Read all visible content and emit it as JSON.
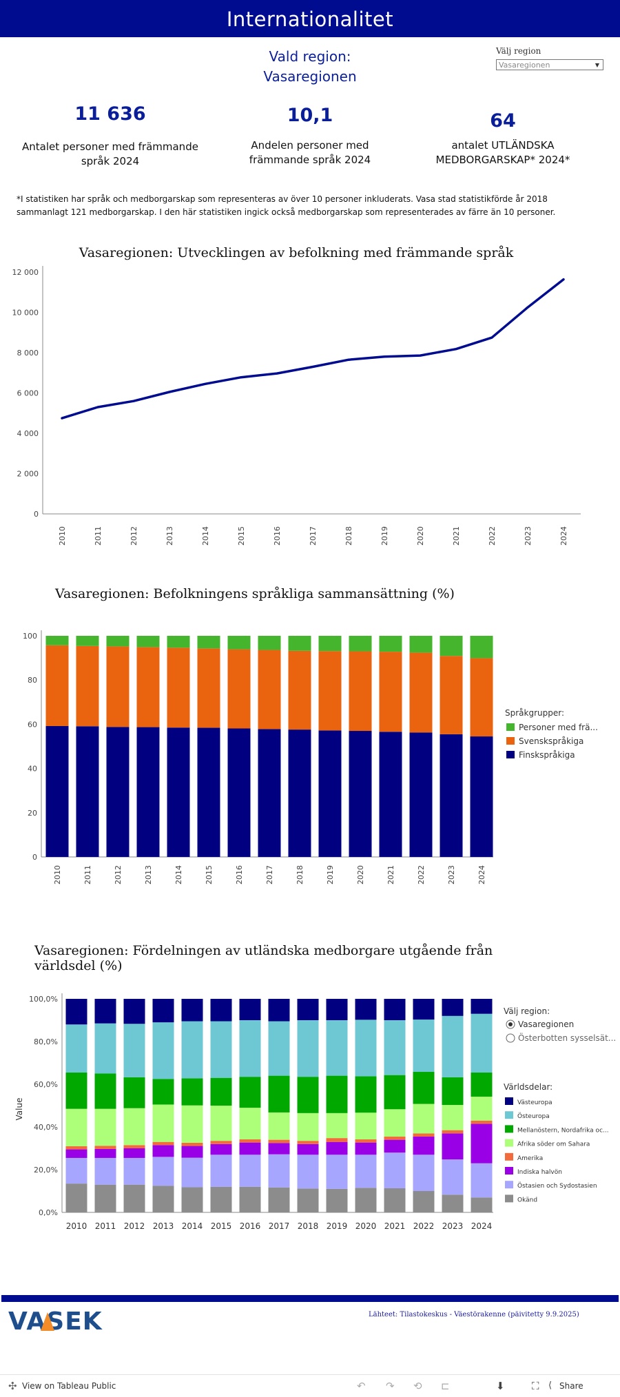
{
  "header": {
    "title": "Internationalitet"
  },
  "region": {
    "label_line1": "Vald region:",
    "label_line2": "Vasaregionen",
    "select_label": "Välj region",
    "select_value": "Vasaregionen"
  },
  "kpis": [
    {
      "value": "11 636",
      "label": "Antalet personer med främmande språk 2024"
    },
    {
      "value": "10,1",
      "label": "Andelen personer med främmande språk 2024"
    },
    {
      "value": "64",
      "label": "antalet UTLÄNDSKA MEDBORGARSKAP* 2024*"
    }
  ],
  "footnote": "*I statistiken har språk och medborgarskap som representeras av över 10 personer inkluderats. Vasa stad statistikförde år 2018 sammanlagt 121 medborgarskap. I den här statistiken ingick också medborgarskap som representerades av färre än 10 personer.",
  "chart_data": [
    {
      "type": "line",
      "title": "Vasaregionen: Utvecklingen av befolkning med främmande språk",
      "x": [
        "2010",
        "2011",
        "2012",
        "2013",
        "2014",
        "2015",
        "2016",
        "2017",
        "2018",
        "2019",
        "2020",
        "2021",
        "2022",
        "2023",
        "2024"
      ],
      "series": [
        {
          "values": [
            4750,
            5300,
            5600,
            6050,
            6450,
            6780,
            6970,
            7300,
            7650,
            7800,
            7860,
            8180,
            8750,
            10250,
            11636
          ]
        }
      ],
      "ylim": [
        0,
        12000
      ],
      "yticks": [
        "0",
        "2 000",
        "4 000",
        "6 000",
        "8 000",
        "10 000",
        "12 000"
      ],
      "color": "#000c8f",
      "grid": false
    },
    {
      "type": "bar",
      "stacked": true,
      "title": "Vasaregionen: Befolkningens språkliga sammansättning (%)",
      "categories": [
        "2010",
        "2011",
        "2012",
        "2013",
        "2014",
        "2015",
        "2016",
        "2017",
        "2018",
        "2019",
        "2020",
        "2021",
        "2022",
        "2023",
        "2024"
      ],
      "legend_title": "Språkgrupper:",
      "legend_position": "right",
      "ylim": [
        0,
        100
      ],
      "yticks": [
        "0",
        "20",
        "40",
        "60",
        "80",
        "100"
      ],
      "series": [
        {
          "name": "Finskspråkiga",
          "color": "#000080",
          "values": [
            59.2,
            59.1,
            58.8,
            58.7,
            58.5,
            58.4,
            58.1,
            57.8,
            57.6,
            57.2,
            57.0,
            56.6,
            56.3,
            55.5,
            54.5
          ]
        },
        {
          "name": "Svenskspråkiga",
          "color": "#ea6410",
          "values": [
            36.5,
            36.3,
            36.4,
            36.2,
            36.1,
            35.9,
            35.8,
            35.8,
            35.6,
            35.9,
            36.0,
            36.2,
            36.1,
            35.4,
            35.4
          ]
        },
        {
          "name": "Personer med främmande språk",
          "display_name": "Personer med frä...",
          "color": "#44b52d",
          "values": [
            4.3,
            4.6,
            4.8,
            5.1,
            5.4,
            5.7,
            6.1,
            6.4,
            6.8,
            6.9,
            7.0,
            7.2,
            7.6,
            9.1,
            10.1
          ]
        }
      ]
    },
    {
      "type": "bar",
      "stacked": true,
      "title": "Vasaregionen: Fördelningen av utländska medborgare utgående från världsdel (%)",
      "categories": [
        "2010",
        "2011",
        "2012",
        "2013",
        "2014",
        "2015",
        "2016",
        "2017",
        "2018",
        "2019",
        "2020",
        "2021",
        "2022",
        "2023",
        "2024"
      ],
      "ylabel": "Value",
      "ylim": [
        0,
        100
      ],
      "yticks": [
        "0,0%",
        "20,0%",
        "40,0%",
        "60,0%",
        "80,0%",
        "100,0%"
      ],
      "legend_title": "Världsdelar:",
      "legend_position": "right",
      "region_filter": {
        "title": "Välj region:",
        "options": [
          "Vasaregionen",
          "Österbotten sysselsät..."
        ],
        "selected": 0
      },
      "series": [
        {
          "name": "Okänd",
          "color": "#8c8c8c",
          "values": [
            13.5,
            13.0,
            13.0,
            12.5,
            11.8,
            12.0,
            12.0,
            11.7,
            11.2,
            11.0,
            11.5,
            11.3,
            10.0,
            8.3,
            7.0
          ]
        },
        {
          "name": "Östasien och Sydostasien",
          "color": "#a6a6ff",
          "values": [
            12.0,
            12.5,
            12.5,
            13.5,
            13.8,
            15.0,
            15.0,
            15.5,
            15.8,
            16.0,
            15.5,
            16.7,
            17.0,
            16.5,
            16.0
          ]
        },
        {
          "name": "Indiska halvön",
          "color": "#9a00e6",
          "values": [
            4.0,
            4.2,
            4.5,
            5.5,
            5.5,
            5.0,
            5.7,
            5.3,
            5.0,
            6.0,
            5.7,
            6.0,
            8.5,
            12.2,
            18.5
          ]
        },
        {
          "name": "Amerika",
          "color": "#f26b3d",
          "values": [
            1.5,
            1.5,
            1.5,
            1.5,
            1.5,
            1.5,
            1.5,
            1.5,
            1.5,
            1.8,
            1.5,
            1.5,
            1.5,
            1.5,
            1.5
          ]
        },
        {
          "name": "Afrika söder om Sahara",
          "color": "#adff7a",
          "values": [
            17.5,
            17.3,
            17.3,
            17.5,
            17.5,
            16.5,
            14.8,
            12.8,
            13.0,
            11.7,
            12.5,
            12.8,
            13.8,
            11.8,
            11.2
          ]
        },
        {
          "name": "Mellanöstern, Nordafrika och Centralasien",
          "display_name": "Mellanöstern, Nordafrika oc...",
          "color": "#00a800",
          "values": [
            17.0,
            16.5,
            14.5,
            12.0,
            12.7,
            13.0,
            14.5,
            17.2,
            17.0,
            17.5,
            17.0,
            16.0,
            15.0,
            13.0,
            11.3
          ]
        },
        {
          "name": "Östeuropa",
          "color": "#6dc8d3",
          "values": [
            22.5,
            23.5,
            25.0,
            26.5,
            26.7,
            26.5,
            26.5,
            25.5,
            26.5,
            26.0,
            26.5,
            25.7,
            24.5,
            28.7,
            27.5
          ]
        },
        {
          "name": "Västeuropa",
          "color": "#000080",
          "values": [
            12.0,
            11.5,
            11.7,
            11.0,
            10.5,
            10.5,
            10.0,
            10.5,
            10.0,
            10.0,
            9.8,
            10.0,
            9.7,
            8.0,
            7.0
          ]
        }
      ],
      "legend_order": [
        "Västeuropa",
        "Östeuropa",
        "Mellanöstern, Nordafrika och Centralasien",
        "Afrika söder om Sahara",
        "Amerika",
        "Indiska halvön",
        "Östasien och Sydostasien",
        "Okänd"
      ]
    }
  ],
  "footer": {
    "logo_text": "VASEK",
    "source": "Lähteet: Tilastokeskus - Väestörakenne (päivitetty 9.9.2025)"
  },
  "toolbar": {
    "view_label": "View on Tableau Public",
    "share_label": "Share"
  }
}
